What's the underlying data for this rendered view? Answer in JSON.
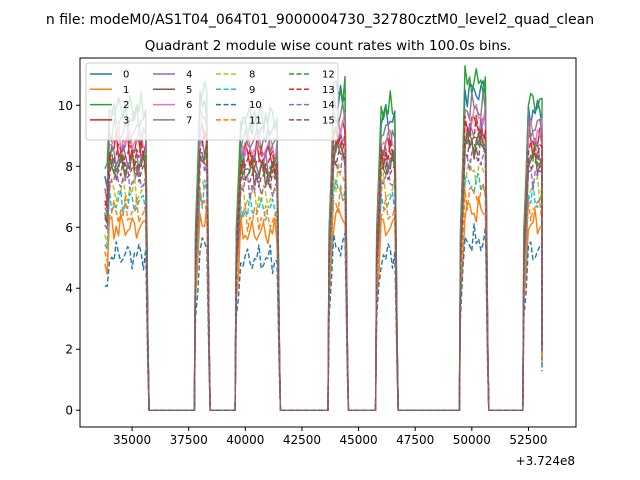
{
  "chart_data": {
    "type": "line",
    "suptitle": "n file: modeM0/AS1T04_064T01_9000004730_32780cztM0_level2_quad_clean",
    "title": "Quadrant 2 module wise count rates with 100.0s bins.",
    "xlabel": "",
    "ylabel": "",
    "x_offset_label": "+3.724e8",
    "xlim": [
      32700,
      54600
    ],
    "ylim": [
      -0.55,
      11.55
    ],
    "xticks": [
      35000,
      37500,
      40000,
      42500,
      45000,
      47500,
      50000,
      52500
    ],
    "xtick_labels": [
      "35000",
      "37500",
      "40000",
      "42500",
      "45000",
      "47500",
      "50000",
      "52500"
    ],
    "yticks": [
      0,
      2,
      4,
      6,
      8,
      10
    ],
    "ytick_labels": [
      "0",
      "2",
      "4",
      "6",
      "8",
      "10"
    ],
    "legend_position": "top-left",
    "legend_columns": 4,
    "segments": [
      {
        "on": 33800,
        "off": 35600,
        "down": 35700
      },
      {
        "on": 37800,
        "off": 38300,
        "down": 38400
      },
      {
        "on": 39600,
        "off": 41400,
        "down": 41500
      },
      {
        "on": 43700,
        "off": 44400,
        "down": 44500
      },
      {
        "on": 45800,
        "off": 46600,
        "down": 46700
      },
      {
        "on": 49500,
        "off": 50600,
        "down": 50700
      },
      {
        "on": 52300,
        "off": 53100,
        "down": 53100
      }
    ],
    "gaps": [
      [
        35700,
        37800
      ],
      [
        38400,
        39600
      ],
      [
        41500,
        43700
      ],
      [
        44500,
        45800
      ],
      [
        46700,
        49500
      ],
      [
        50700,
        52300
      ]
    ],
    "series": [
      {
        "name": "0",
        "level": 9.6,
        "color": "#1f77b4",
        "dash": "solid"
      },
      {
        "name": "1",
        "level": 6.0,
        "color": "#ff7f0e",
        "dash": "solid"
      },
      {
        "name": "2",
        "level": 9.9,
        "color": "#2ca02c",
        "dash": "solid"
      },
      {
        "name": "3",
        "level": 8.6,
        "color": "#d62728",
        "dash": "solid"
      },
      {
        "name": "4",
        "level": 8.3,
        "color": "#9467bd",
        "dash": "solid"
      },
      {
        "name": "5",
        "level": 8.0,
        "color": "#8c564b",
        "dash": "solid"
      },
      {
        "name": "6",
        "level": 8.9,
        "color": "#e377c2",
        "dash": "solid"
      },
      {
        "name": "7",
        "level": 9.1,
        "color": "#7f7f7f",
        "dash": "solid"
      },
      {
        "name": "8",
        "level": 7.2,
        "color": "#bcbd22",
        "dash": "dashed"
      },
      {
        "name": "9",
        "level": 6.8,
        "color": "#17becf",
        "dash": "dashed"
      },
      {
        "name": "10",
        "level": 5.1,
        "color": "#1f77b4",
        "dash": "dashed"
      },
      {
        "name": "11",
        "level": 6.5,
        "color": "#ff7f0e",
        "dash": "dashed"
      },
      {
        "name": "12",
        "level": 8.1,
        "color": "#2ca02c",
        "dash": "dashed"
      },
      {
        "name": "13",
        "level": 8.4,
        "color": "#d62728",
        "dash": "dashed"
      },
      {
        "name": "14",
        "level": 7.6,
        "color": "#9467bd",
        "dash": "dashed"
      },
      {
        "name": "15",
        "level": 7.9,
        "color": "#8c564b",
        "dash": "dashed"
      }
    ]
  }
}
